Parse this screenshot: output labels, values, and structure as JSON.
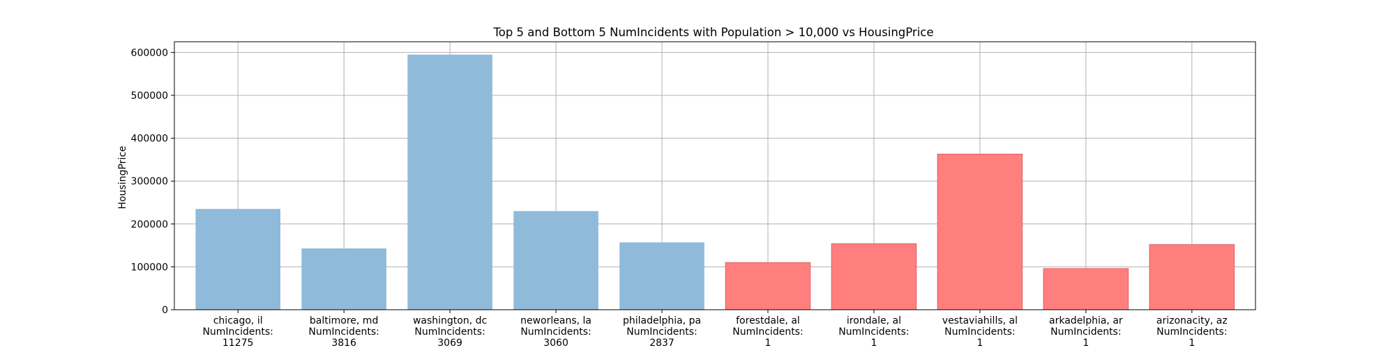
{
  "chart_data": {
    "type": "bar",
    "title": "Top 5 and Bottom 5 NumIncidents with Population > 10,000 vs HousingPrice",
    "xlabel": "",
    "ylabel": "HousingPrice",
    "ylim": [
      0,
      625000
    ],
    "yticks": [
      0,
      100000,
      200000,
      300000,
      400000,
      500000,
      600000
    ],
    "grid": true,
    "categories": [
      "chicago, il",
      "baltimore, md",
      "washington, dc",
      "neworleans, la",
      "philadelphia, pa",
      "forestdale, al",
      "irondale, al",
      "vestaviahills, al",
      "arkadelphia, ar",
      "arizonacity, az"
    ],
    "incident_label": "NumIncidents:",
    "num_incidents": [
      11275,
      3816,
      3069,
      3060,
      2837,
      1,
      1,
      1,
      1,
      1
    ],
    "series": [
      {
        "values": [
          235000,
          143000,
          595000,
          230000,
          157000,
          null,
          null,
          null,
          null,
          null
        ],
        "color": "#8fbad9"
      },
      {
        "values": [
          null,
          null,
          null,
          null,
          null,
          110000,
          154000,
          363000,
          96000,
          152000
        ],
        "color": "#ff7f7f"
      }
    ]
  }
}
